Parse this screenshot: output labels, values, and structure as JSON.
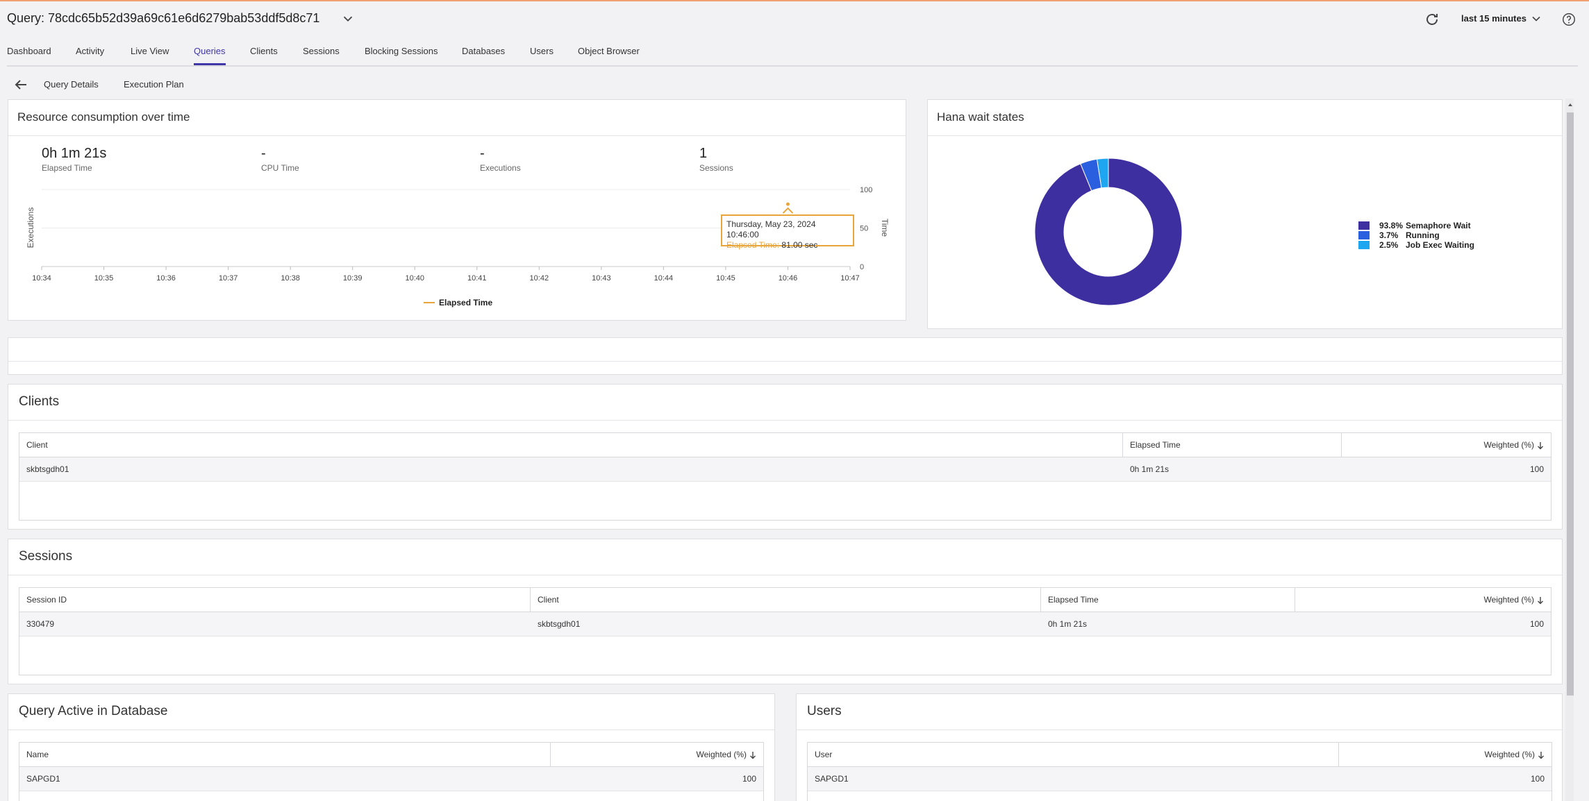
{
  "header": {
    "title": "Query: 78cdc65b52d39a69c61e6d6279bab53ddf5d8c71",
    "time_range": "last 15 minutes"
  },
  "nav": {
    "tabs": [
      {
        "label": "Dashboard"
      },
      {
        "label": "Activity"
      },
      {
        "label": "Live View"
      },
      {
        "label": "Queries"
      },
      {
        "label": "Clients"
      },
      {
        "label": "Sessions"
      },
      {
        "label": "Blocking Sessions"
      },
      {
        "label": "Databases"
      },
      {
        "label": "Users"
      },
      {
        "label": "Object Browser"
      }
    ],
    "active": "Queries"
  },
  "subnav": {
    "tabs": [
      {
        "label": "Query Details"
      },
      {
        "label": "Execution Plan"
      }
    ]
  },
  "resource": {
    "title": "Resource consumption over time",
    "kpis": [
      {
        "value": "0h 1m 21s",
        "label": "Elapsed Time"
      },
      {
        "value": "-",
        "label": "CPU Time"
      },
      {
        "value": "-",
        "label": "Executions"
      },
      {
        "value": "1",
        "label": "Sessions"
      }
    ],
    "tooltip": {
      "date": "Thursday, May 23, 2024 10:46:00",
      "label": "Elapsed Time:",
      "value": "81.00 sec"
    }
  },
  "wait_states": {
    "title": "Hana wait states"
  },
  "chart_data": [
    {
      "type": "line",
      "x": [
        "10:34",
        "10:35",
        "10:36",
        "10:37",
        "10:38",
        "10:39",
        "10:40",
        "10:41",
        "10:42",
        "10:43",
        "10:44",
        "10:45",
        "10:46",
        "10:47"
      ],
      "series": [
        {
          "name": "Elapsed Time",
          "values": [
            null,
            null,
            null,
            null,
            null,
            null,
            null,
            null,
            null,
            null,
            null,
            null,
            81,
            null
          ],
          "color": "#e8a53a"
        }
      ],
      "ylabel": "Executions",
      "y2label": "Time",
      "y2ticks": [
        "0",
        "50",
        "100"
      ],
      "y2lim": [
        0,
        100
      ],
      "grid": true,
      "legend": "bottom"
    },
    {
      "type": "pie",
      "donut": true,
      "slices": [
        {
          "label": "Semaphore Wait",
          "pct": "93.8%",
          "value": 93.8,
          "color": "#3d2fa0"
        },
        {
          "label": "Running",
          "pct": "3.7%",
          "value": 3.7,
          "color": "#2a5fe0"
        },
        {
          "label": "Job Exec Waiting",
          "pct": "2.5%",
          "value": 2.5,
          "color": "#1fa6f0"
        }
      ],
      "legend": "right"
    }
  ],
  "clients": {
    "title": "Clients",
    "columns": [
      "Client",
      "Elapsed Time",
      "Weighted (%)"
    ],
    "rows": [
      [
        "skbtsgdh01",
        "0h 1m 21s",
        "100"
      ]
    ]
  },
  "sessions": {
    "title": "Sessions",
    "columns": [
      "Session ID",
      "Client",
      "Elapsed Time",
      "Weighted (%)"
    ],
    "rows": [
      [
        "330479",
        "skbtsgdh01",
        "0h 1m 21s",
        "100"
      ]
    ]
  },
  "query_db": {
    "title": "Query Active in Database",
    "columns": [
      "Name",
      "Weighted (%)"
    ],
    "rows": [
      [
        "SAPGD1",
        "100"
      ]
    ]
  },
  "users": {
    "title": "Users",
    "columns": [
      "User",
      "Weighted (%)"
    ],
    "rows": [
      [
        "SAPGD1",
        "100"
      ]
    ]
  }
}
